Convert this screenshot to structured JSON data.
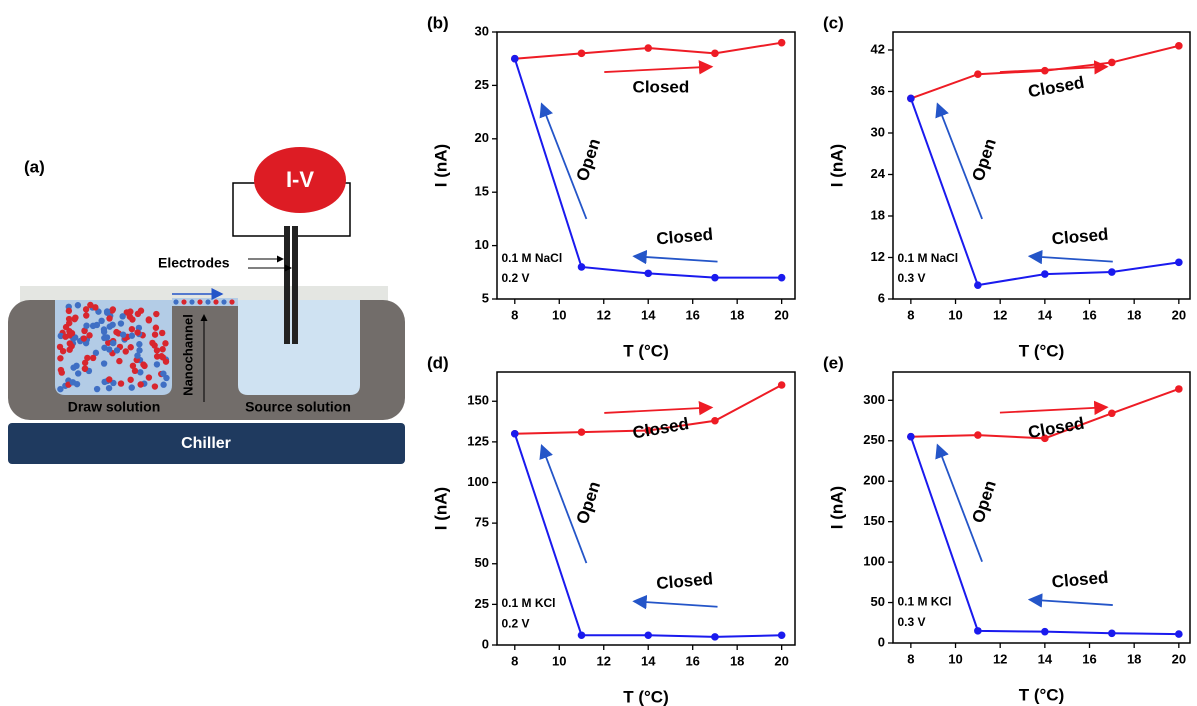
{
  "diagram": {
    "label": "(a)",
    "meter": "I-V",
    "electrodes": "Electrodes",
    "nanochannel": "Nanochannel",
    "draw": "Draw solution",
    "source": "Source solution",
    "chiller": "Chiller"
  },
  "chart_data": [
    {
      "type": "line",
      "panel_label": "(b)",
      "xlabel": "T (°C)",
      "ylabel": "I (nA)",
      "x": [
        8,
        11,
        14,
        17,
        20
      ],
      "series": [
        {
          "color": "#ee1c25",
          "values": [
            27.5,
            28,
            28.5,
            28,
            29
          ]
        },
        {
          "color": "#1a1aee",
          "values": [
            27.5,
            8,
            7.4,
            7,
            7
          ]
        }
      ],
      "xlim": [
        7.2,
        20.6
      ],
      "ylim": [
        5,
        30
      ],
      "xticks": [
        8,
        10,
        12,
        14,
        16,
        18,
        20
      ],
      "yticks": [
        5,
        10,
        15,
        20,
        25,
        30
      ],
      "annotations": [
        {
          "text": "Closed",
          "color": "#000"
        },
        {
          "text": "Open",
          "color": "#000"
        },
        {
          "text": "Closed",
          "color": "#000"
        },
        {
          "text": "0.1 M NaCl",
          "color": "#000"
        },
        {
          "text": "0.2 V",
          "color": "#000"
        }
      ]
    },
    {
      "type": "line",
      "panel_label": "(c)",
      "xlabel": "T (°C)",
      "ylabel": "I (nA)",
      "x": [
        8,
        11,
        14,
        17,
        20
      ],
      "series": [
        {
          "color": "#ee1c25",
          "values": [
            35,
            38.5,
            39,
            40.2,
            42.6
          ]
        },
        {
          "color": "#1a1aee",
          "values": [
            35,
            8,
            9.6,
            9.9,
            11.3
          ]
        }
      ],
      "xlim": [
        7.2,
        20.5
      ],
      "ylim": [
        6,
        44.6
      ],
      "xticks": [
        8,
        10,
        12,
        14,
        16,
        18,
        20
      ],
      "yticks": [
        6,
        12,
        18,
        24,
        30,
        36,
        42
      ],
      "annotations": [
        {
          "text": "Closed",
          "color": "#000"
        },
        {
          "text": "Open",
          "color": "#000"
        },
        {
          "text": "Closed",
          "color": "#000"
        },
        {
          "text": "0.1 M NaCl",
          "color": "#000"
        },
        {
          "text": "0.3 V",
          "color": "#000"
        }
      ]
    },
    {
      "type": "line",
      "panel_label": "(d)",
      "xlabel": "T (°C)",
      "ylabel": "I (nA)",
      "x": [
        8,
        11,
        14,
        17,
        20
      ],
      "series": [
        {
          "color": "#ee1c25",
          "values": [
            130,
            131,
            132,
            138,
            160
          ]
        },
        {
          "color": "#1a1aee",
          "values": [
            130,
            6,
            6,
            5,
            6
          ]
        }
      ],
      "xlim": [
        7.2,
        20.6
      ],
      "ylim": [
        0,
        168
      ],
      "xticks": [
        8,
        10,
        12,
        14,
        16,
        18,
        20
      ],
      "yticks": [
        0,
        25,
        50,
        75,
        100,
        125,
        150
      ],
      "annotations": [
        {
          "text": "Closed",
          "color": "#000"
        },
        {
          "text": "Open",
          "color": "#000"
        },
        {
          "text": "Closed",
          "color": "#000"
        },
        {
          "text": "0.1 M KCl",
          "color": "#000"
        },
        {
          "text": "0.2 V",
          "color": "#000"
        }
      ]
    },
    {
      "type": "line",
      "panel_label": "(e)",
      "xlabel": "T (°C)",
      "ylabel": "I (nA)",
      "x": [
        8,
        11,
        14,
        17,
        20
      ],
      "series": [
        {
          "color": "#ee1c25",
          "values": [
            255,
            257,
            253,
            284,
            314
          ]
        },
        {
          "color": "#1a1aee",
          "values": [
            255,
            15,
            14,
            12,
            11
          ]
        }
      ],
      "xlim": [
        7.2,
        20.5
      ],
      "ylim": [
        0,
        335
      ],
      "xticks": [
        8,
        10,
        12,
        14,
        16,
        18,
        20
      ],
      "yticks": [
        0,
        50,
        100,
        150,
        200,
        250,
        300
      ],
      "annotations": [
        {
          "text": "Closed",
          "color": "#000"
        },
        {
          "text": "Open",
          "color": "#000"
        },
        {
          "text": "Closed",
          "color": "#000"
        },
        {
          "text": "0.1 M KCl",
          "color": "#000"
        },
        {
          "text": "0.3 V",
          "color": "#000"
        }
      ]
    }
  ]
}
